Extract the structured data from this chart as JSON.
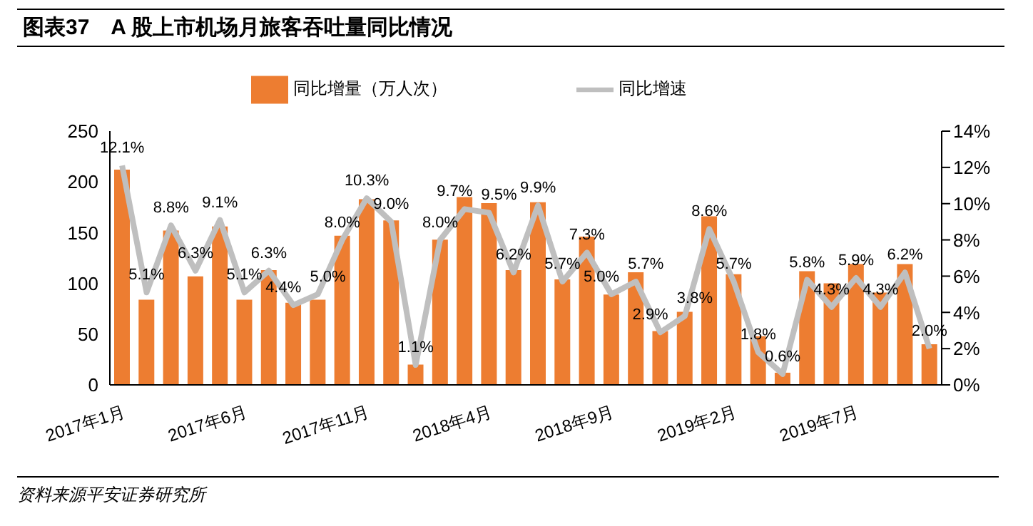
{
  "chart_data": {
    "type": "bar",
    "title": "图表37　A 股上市机场月旅客吞吐量同比情况",
    "categories": [
      "2017年1月",
      null,
      null,
      null,
      null,
      "2017年6月",
      null,
      null,
      null,
      null,
      "2017年11月",
      null,
      null,
      null,
      null,
      "2018年4月",
      null,
      null,
      null,
      null,
      "2018年9月",
      null,
      null,
      null,
      null,
      "2019年2月",
      null,
      null,
      null,
      null,
      "2019年7月",
      null,
      null,
      null
    ],
    "series": [
      {
        "name": "同比增量（万人次）",
        "color": "#ed7d31",
        "values": [
          212,
          84,
          152,
          107,
          156,
          84,
          113,
          81,
          84,
          147,
          183,
          162,
          20,
          143,
          185,
          179,
          113,
          180,
          104,
          146,
          89,
          111,
          53,
          72,
          166,
          109,
          48,
          12,
          112,
          100,
          119,
          91,
          119,
          40
        ]
      },
      {
        "name": "同比增速",
        "type": "line",
        "axis": "y2",
        "color": "#bfbfbf",
        "values": [
          12.1,
          5.1,
          8.8,
          6.3,
          9.1,
          5.1,
          6.3,
          4.4,
          5.0,
          8.0,
          10.3,
          9.0,
          1.1,
          8.0,
          9.7,
          9.5,
          6.2,
          9.9,
          5.7,
          7.3,
          5.0,
          5.7,
          2.9,
          3.8,
          8.6,
          5.7,
          1.8,
          0.6,
          5.8,
          4.3,
          5.9,
          4.3,
          6.2,
          2.0
        ],
        "value_labels": [
          "12.1%",
          "5.1%",
          "8.8%",
          "6.3%",
          "9.1%",
          "5.1%",
          "6.3%",
          "4.4%",
          "5.0%",
          "8.0%",
          "10.3%",
          "9.0%",
          "1.1%",
          "8.0%",
          "9.7%",
          "9.5%",
          "6.2%",
          "9.9%",
          "5.7%",
          "7.3%",
          "5.0%",
          "5.7%",
          "2.9%",
          "3.8%",
          "8.6%",
          "5.7%",
          "1.8%",
          "0.6%",
          "5.8%",
          "4.3%",
          "5.9%",
          "4.3%",
          "6.2%",
          "2.0%"
        ]
      }
    ],
    "ylim": [
      0,
      250
    ],
    "yticks": [
      0,
      50,
      100,
      150,
      200,
      250
    ],
    "y2lim": [
      0,
      14
    ],
    "y2ticks": [
      {
        "value": 0,
        "label": "0%"
      },
      {
        "value": 2,
        "label": "2%"
      },
      {
        "value": 4,
        "label": "4%"
      },
      {
        "value": 6,
        "label": "6%"
      },
      {
        "value": 8,
        "label": "8%"
      },
      {
        "value": 10,
        "label": "10%"
      },
      {
        "value": 12,
        "label": "12%"
      },
      {
        "value": 14,
        "label": "14%"
      }
    ],
    "legend": "top",
    "marker": "none",
    "annotations": [
      "资料来源平安证券研究所"
    ]
  }
}
